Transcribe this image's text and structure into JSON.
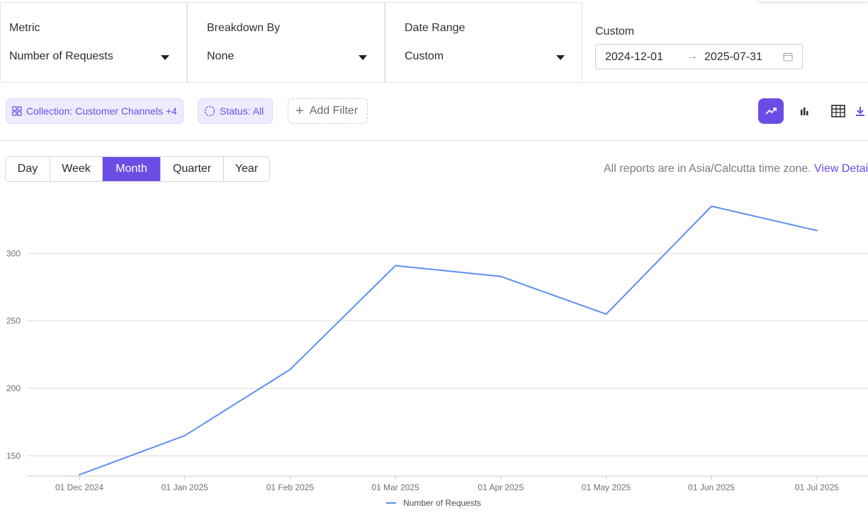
{
  "selectors": {
    "metric": {
      "label": "Metric",
      "value": "Number of Requests"
    },
    "breakdown": {
      "label": "Breakdown By",
      "value": "None"
    },
    "date_range": {
      "label": "Date Range",
      "value": "Custom"
    },
    "custom": {
      "label": "Custom",
      "start": "2024-12-01",
      "end": "2025-07-31",
      "arrow": "→"
    }
  },
  "filters": {
    "collection_chip": "Collection: Customer Channels +4",
    "status_chip": "Status: All",
    "add_filter": "Add Filter",
    "view_buttons": [
      "line-chart-icon",
      "bar-chart-icon",
      "table-icon",
      "download-icon"
    ]
  },
  "granularity": {
    "options": [
      "Day",
      "Week",
      "Month",
      "Quarter",
      "Year"
    ],
    "selected": "Month"
  },
  "timezone": {
    "text": "All reports are in Asia/Calcutta time zone.",
    "link": "View Details"
  },
  "colors": {
    "accent": "#6b4de6",
    "line": "#5b8ff0",
    "grid": "#dcdcdc"
  },
  "chart_data": {
    "type": "line",
    "x": [
      "01 Dec 2024",
      "01 Jan 2025",
      "01 Feb 2025",
      "01 Mar 2025",
      "01 Apr 2025",
      "01 May 2025",
      "01 Jun 2025",
      "01 Jul 2025"
    ],
    "series": [
      {
        "name": "Number of Requests",
        "values": [
          136,
          165,
          214,
          291,
          283,
          255,
          335,
          317
        ]
      }
    ],
    "yticks": [
      150,
      200,
      250,
      300
    ],
    "ylim": [
      135,
      340
    ],
    "grid": true,
    "legend": "bottom"
  }
}
